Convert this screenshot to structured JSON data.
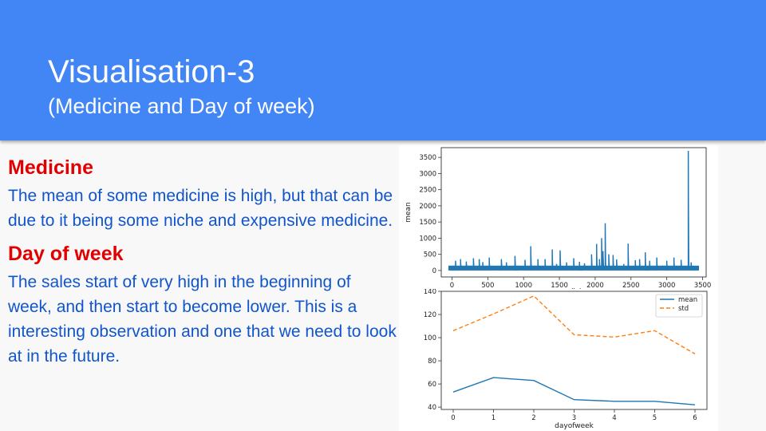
{
  "slide": {
    "title": "Visualisation-3",
    "subtitle": "(Medicine and Day of week)",
    "colors": {
      "header_bg": "#4285f4",
      "heading": "#e00000",
      "body_text": "#1155cc",
      "mean_line": "#1f77b4",
      "std_line": "#ff7f0e"
    }
  },
  "sections": [
    {
      "heading": "Medicine",
      "body": "The mean of some medicine is high, but that can be due to it being some niche and expensive medicine."
    },
    {
      "heading": "Day of week",
      "body": "The sales start of very high in the beginning of week, and then start to become lower. This is a interesting observation and one that we need to look at in the future."
    }
  ],
  "chart_data": [
    {
      "type": "line",
      "title": "",
      "xlabel": "medicine",
      "ylabel": "mean",
      "xlim": [
        -150,
        3550
      ],
      "ylim": [
        -200,
        3800
      ],
      "xticks": [
        0,
        500,
        1000,
        1500,
        2000,
        2500,
        3000,
        3500
      ],
      "yticks": [
        0,
        500,
        1000,
        1500,
        2000,
        2500,
        3000,
        3500
      ],
      "grid": false,
      "series": [
        {
          "color": "#1f77b4",
          "spikes": [
            [
              0,
              120
            ],
            [
              50,
              300
            ],
            [
              120,
              350
            ],
            [
              200,
              280
            ],
            [
              300,
              380
            ],
            [
              380,
              350
            ],
            [
              430,
              260
            ],
            [
              520,
              400
            ],
            [
              690,
              350
            ],
            [
              760,
              250
            ],
            [
              880,
              450
            ],
            [
              1020,
              330
            ],
            [
              1100,
              750
            ],
            [
              1200,
              350
            ],
            [
              1300,
              350
            ],
            [
              1400,
              650
            ],
            [
              1460,
              200
            ],
            [
              1510,
              620
            ],
            [
              1600,
              250
            ],
            [
              1700,
              380
            ],
            [
              1780,
              270
            ],
            [
              1850,
              220
            ],
            [
              1950,
              500
            ],
            [
              2020,
              820
            ],
            [
              2060,
              350
            ],
            [
              2090,
              1000
            ],
            [
              2110,
              600
            ],
            [
              2140,
              1460
            ],
            [
              2190,
              500
            ],
            [
              2250,
              480
            ],
            [
              2300,
              340
            ],
            [
              2400,
              200
            ],
            [
              2460,
              830
            ],
            [
              2560,
              320
            ],
            [
              2620,
              350
            ],
            [
              2700,
              560
            ],
            [
              2760,
              300
            ],
            [
              2860,
              400
            ],
            [
              3000,
              300
            ],
            [
              3100,
              400
            ],
            [
              3200,
              330
            ],
            [
              3300,
              3700
            ],
            [
              3340,
              250
            ],
            [
              3400,
              100
            ]
          ]
        }
      ]
    },
    {
      "type": "line",
      "title": "",
      "xlabel": "dayofweek",
      "ylabel": "",
      "categories": [
        0,
        1,
        2,
        3,
        4,
        5,
        6
      ],
      "ylim": [
        38,
        140
      ],
      "yticks": [
        40,
        60,
        80,
        100,
        120,
        140
      ],
      "grid": false,
      "legend_position": "top-right",
      "series": [
        {
          "name": "mean",
          "values": [
            53,
            65.5,
            63,
            46.5,
            45,
            45,
            42
          ],
          "color": "#1f77b4",
          "dash": "solid"
        },
        {
          "name": "std",
          "values": [
            106,
            120.5,
            136,
            102.5,
            100.5,
            106,
            86
          ],
          "color": "#ff7f0e",
          "dash": "dashed"
        }
      ]
    }
  ]
}
